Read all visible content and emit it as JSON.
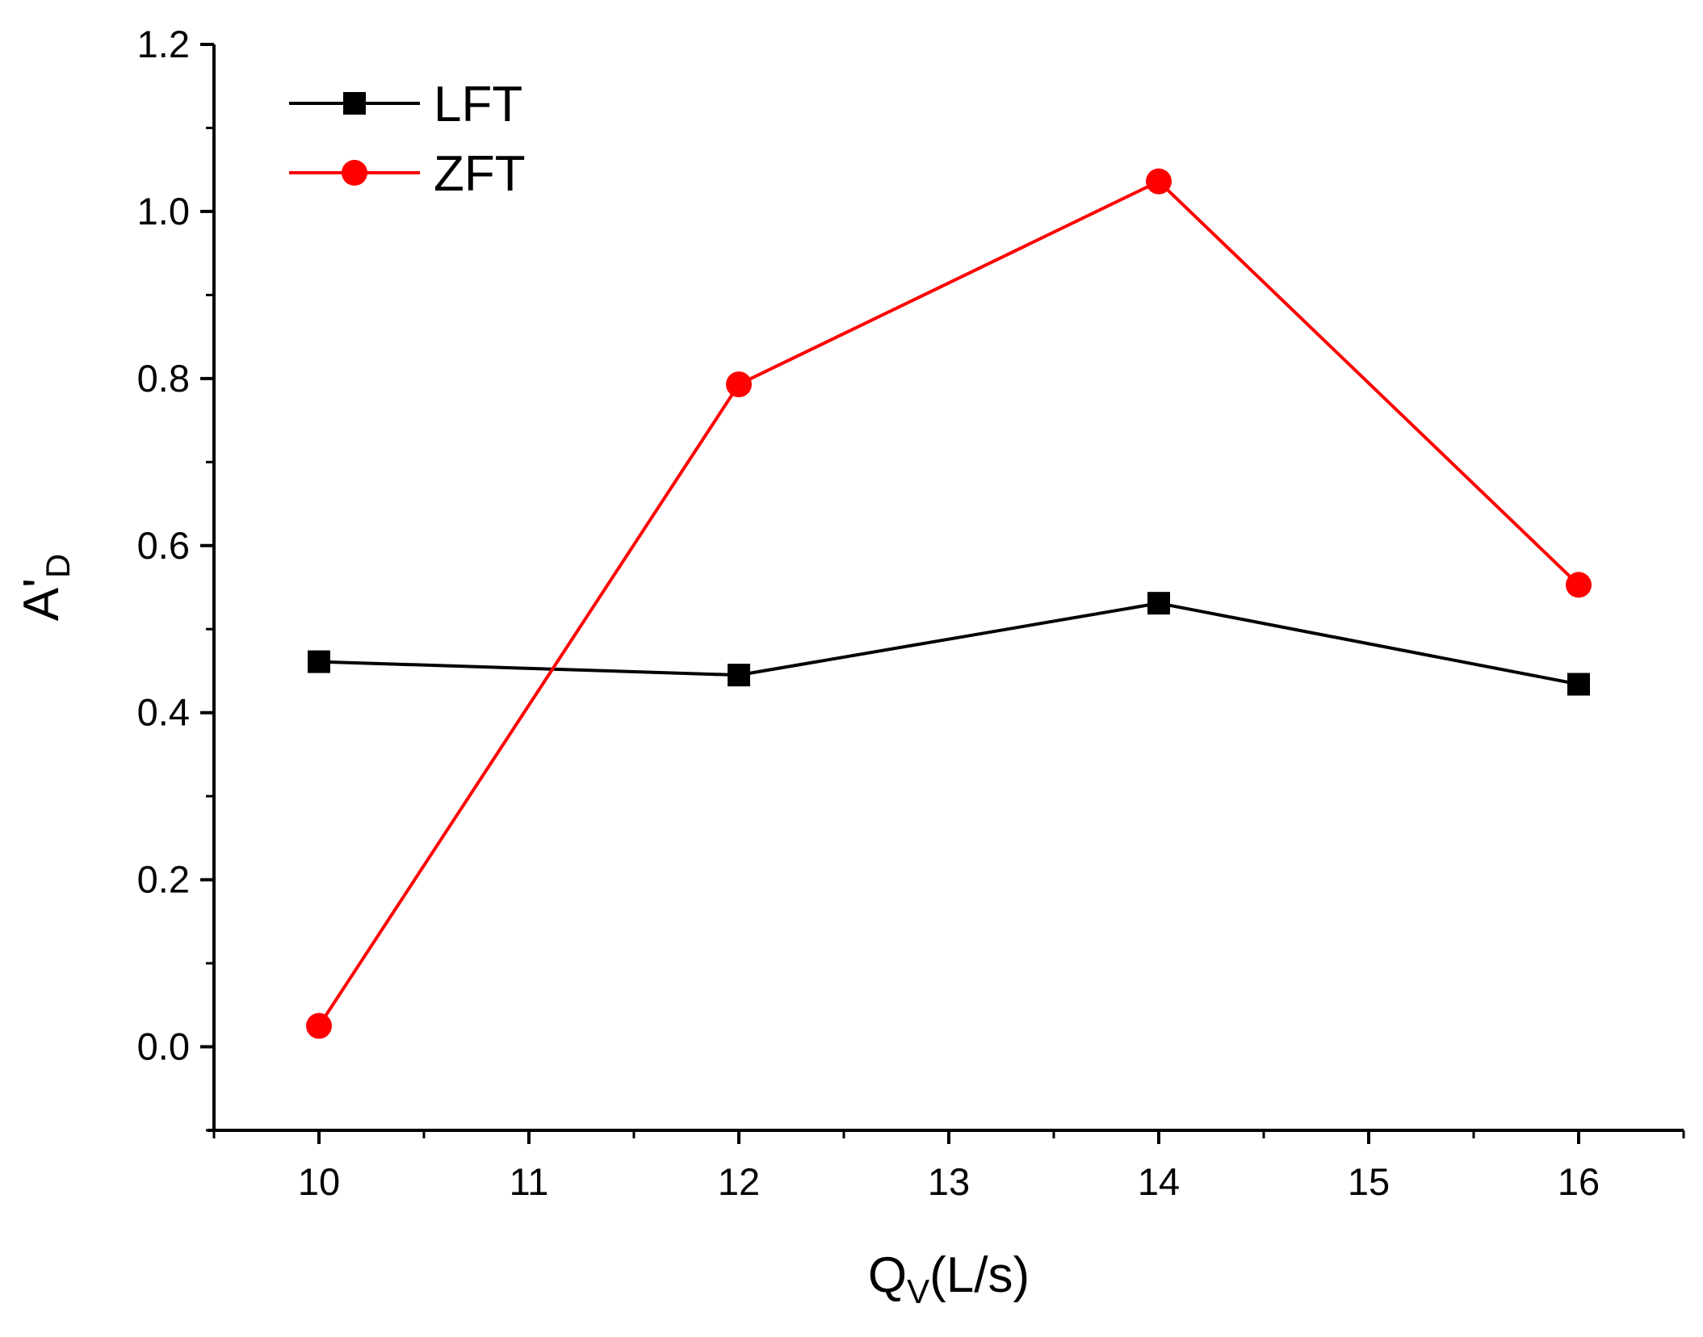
{
  "chart_data": {
    "type": "line",
    "title": "",
    "xlabel": {
      "main": "Q",
      "sub": "V",
      "rest": "(L/s)"
    },
    "ylabel": {
      "main": "A'",
      "sub": "D"
    },
    "x": [
      10,
      12,
      14,
      16
    ],
    "xlim": [
      9.5,
      16.5
    ],
    "ylim": [
      -0.1,
      1.2
    ],
    "x_ticks": [
      "10",
      "11",
      "12",
      "13",
      "14",
      "15",
      "16"
    ],
    "y_ticks": [
      "0.0",
      "0.2",
      "0.4",
      "0.6",
      "0.8",
      "1.0",
      "1.2"
    ],
    "legend_position": "top-left",
    "series": [
      {
        "name": "LFT",
        "color": "#000000",
        "marker": "square",
        "values": [
          0.461,
          0.445,
          0.531,
          0.434
        ]
      },
      {
        "name": "ZFT",
        "color": "#ff0000",
        "marker": "circle",
        "values": [
          0.025,
          0.793,
          1.036,
          0.553
        ]
      }
    ]
  }
}
